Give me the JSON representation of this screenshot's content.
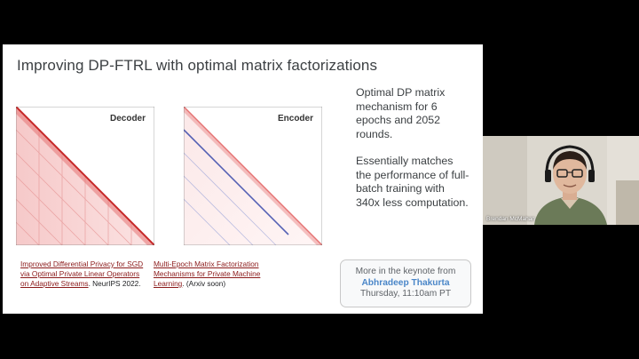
{
  "slide": {
    "title": "Improving DP-FTRL with optimal matrix factorizations",
    "decoder_label": "Decoder",
    "encoder_label": "Encoder",
    "bullet1": "Optimal DP matrix mechanism for 6 epochs and 2052 rounds.",
    "bullet2": "Essentially matches the performance of full-batch training with 340x less computation.",
    "ref1_link": "Improved Differential Privacy for SGD via Optimal Private Linear Operators on Adaptive Streams",
    "ref1_tail": ". NeurIPS 2022.",
    "ref2_link": "Multi-Epoch Matrix Factorization Mechanisms for Private Machine Learning",
    "ref2_tail": ". (Arxiv soon)",
    "keynote_line1": "More in the keynote from",
    "keynote_name": "Abhradeep Thakurta",
    "keynote_time": "Thursday, 11:10am PT"
  },
  "webcam": {
    "participant_name": "Brendan McMahan"
  },
  "colors": {
    "decoder_red": "#d32f2f",
    "encoder_blue": "#3949ab",
    "link": "#8b1a1a",
    "keynote_name": "#4a86c8"
  }
}
